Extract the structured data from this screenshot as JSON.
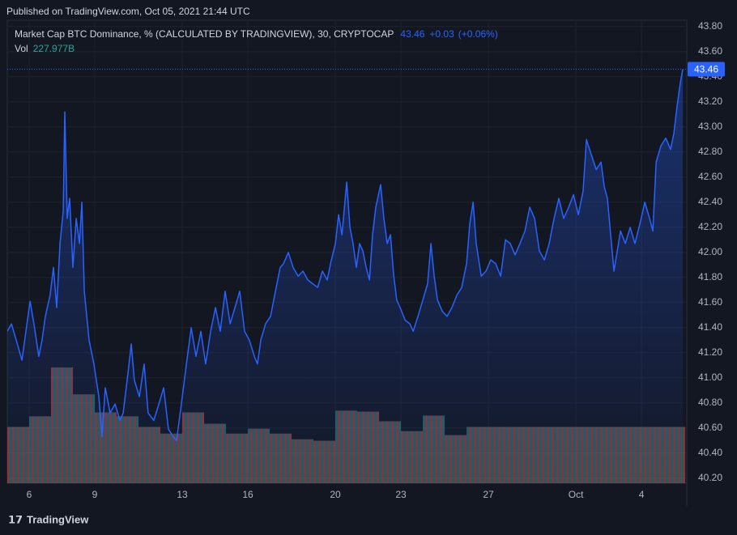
{
  "header": "Published on TradingView.com, Oct 05, 2021 21:44 UTC",
  "footer": "TradingView",
  "chart_data": {
    "type": "line",
    "title": "Market Cap BTC Dominance, % (CALCULATED BY TRADINGVIEW), 30, CRYPTOCAP",
    "change": "+0.03",
    "change_percent": "(+0.06%)",
    "series": [
      {
        "name": "Market Cap BTC Dominance",
        "color": "#2962ff",
        "x": [
          5.0,
          5.19,
          5.41,
          5.67,
          5.85,
          6.04,
          6.22,
          6.44,
          6.59,
          6.74,
          6.96,
          7.11,
          7.26,
          7.41,
          7.56,
          7.63,
          7.74,
          7.85,
          8.0,
          8.15,
          8.3,
          8.41,
          8.52,
          8.74,
          8.96,
          9.19,
          9.33,
          9.48,
          9.7,
          9.93,
          10.15,
          10.3,
          10.52,
          10.67,
          10.81,
          11.04,
          11.26,
          11.44,
          11.7,
          11.93,
          12.15,
          12.37,
          12.59,
          12.74,
          12.96,
          13.19,
          13.41,
          13.63,
          13.85,
          14.07,
          14.3,
          14.52,
          14.74,
          14.96,
          15.19,
          15.41,
          15.63,
          15.85,
          16.07,
          16.3,
          16.44,
          16.59,
          16.81,
          17.04,
          17.26,
          17.48,
          17.63,
          17.85,
          18.07,
          18.3,
          18.52,
          18.74,
          18.96,
          19.19,
          19.41,
          19.63,
          19.78,
          20.0,
          20.15,
          20.3,
          20.52,
          20.67,
          20.81,
          20.96,
          21.11,
          21.26,
          21.41,
          21.56,
          21.7,
          21.85,
          22.07,
          22.22,
          22.37,
          22.52,
          22.67,
          22.81,
          22.96,
          23.19,
          23.41,
          23.56,
          23.78,
          24.0,
          24.22,
          24.37,
          24.52,
          24.67,
          24.89,
          25.11,
          25.33,
          25.56,
          25.78,
          26.0,
          26.15,
          26.3,
          26.44,
          26.67,
          26.89,
          27.11,
          27.33,
          27.56,
          27.78,
          28.0,
          28.22,
          28.44,
          28.67,
          28.89,
          29.11,
          29.33,
          29.56,
          29.78,
          30.0,
          30.22,
          30.44,
          30.67,
          30.89,
          31.11,
          31.33,
          31.48,
          31.7,
          31.93,
          32.15,
          32.3,
          32.44,
          32.59,
          32.74,
          32.89,
          33.04,
          33.26,
          33.48,
          33.7,
          33.93,
          34.15,
          34.37,
          34.52,
          34.67,
          34.89,
          35.11,
          35.33,
          35.48,
          35.63,
          35.78,
          35.89
        ],
        "values": [
          41.37,
          41.43,
          41.3,
          41.14,
          41.37,
          41.61,
          41.43,
          41.17,
          41.3,
          41.49,
          41.66,
          41.88,
          41.56,
          42.07,
          42.33,
          43.12,
          42.27,
          42.43,
          41.88,
          42.27,
          42.07,
          42.4,
          41.69,
          41.3,
          41.11,
          40.85,
          40.53,
          40.92,
          40.72,
          40.79,
          40.66,
          40.72,
          41.04,
          41.27,
          40.98,
          40.85,
          41.11,
          40.72,
          40.66,
          40.79,
          40.92,
          40.59,
          40.53,
          40.5,
          40.79,
          41.11,
          41.4,
          41.17,
          41.37,
          41.11,
          41.37,
          41.56,
          41.37,
          41.69,
          41.43,
          41.56,
          41.69,
          41.37,
          41.3,
          41.17,
          41.11,
          41.3,
          41.43,
          41.49,
          41.69,
          41.88,
          41.91,
          42.0,
          41.88,
          41.81,
          41.85,
          41.78,
          41.75,
          41.72,
          41.85,
          41.78,
          41.91,
          42.07,
          42.3,
          42.14,
          42.56,
          42.2,
          42.07,
          41.88,
          42.07,
          42.01,
          41.88,
          41.78,
          42.14,
          42.36,
          42.54,
          42.27,
          42.07,
          42.14,
          41.81,
          41.62,
          41.56,
          41.46,
          41.43,
          41.37,
          41.49,
          41.62,
          41.75,
          42.07,
          41.81,
          41.62,
          41.53,
          41.49,
          41.56,
          41.66,
          41.72,
          41.91,
          42.23,
          42.4,
          42.07,
          41.81,
          41.85,
          41.94,
          41.91,
          41.81,
          42.1,
          42.07,
          41.98,
          42.07,
          42.17,
          42.36,
          42.27,
          42.01,
          41.94,
          42.07,
          42.27,
          42.43,
          42.27,
          42.36,
          42.46,
          42.3,
          42.49,
          42.9,
          42.78,
          42.66,
          42.72,
          42.52,
          42.43,
          42.14,
          41.85,
          42.01,
          42.17,
          42.07,
          42.2,
          42.07,
          42.23,
          42.4,
          42.27,
          42.17,
          42.72,
          42.85,
          42.91,
          42.82,
          42.95,
          43.17,
          43.36,
          43.46
        ]
      }
    ],
    "volume": {
      "name": "Vol",
      "up_color": "#26a69a",
      "down_color": "#ef5350",
      "x": [
        5,
        6,
        7,
        8,
        9,
        10,
        11,
        12,
        13,
        14,
        15,
        16,
        17,
        18,
        19,
        20,
        21,
        22,
        23,
        24,
        25,
        26,
        27,
        28,
        29,
        30,
        31,
        32,
        33,
        34,
        35
      ],
      "values": [
        228,
        271,
        469,
        360,
        287,
        271,
        228,
        201,
        287,
        241,
        201,
        221,
        201,
        178,
        172,
        294,
        290,
        251,
        211,
        274,
        195,
        228,
        228,
        228,
        228,
        228,
        228,
        228,
        228,
        228,
        227.977
      ],
      "last_value_label": "227.977B"
    },
    "xlim": [
      5,
      36.07
    ],
    "xticks": [
      6,
      9,
      13,
      16,
      20,
      23,
      27,
      {
        "value": 31,
        "label": "Oct"
      },
      {
        "value": 34,
        "label": "4"
      }
    ],
    "ylim": [
      40.16,
      43.85
    ],
    "yticks": [
      {
        "value": 40.2,
        "label": "40.20"
      },
      {
        "value": 40.4,
        "label": "40.40"
      },
      {
        "value": 40.6,
        "label": "40.60"
      },
      {
        "value": 40.8,
        "label": "40.80"
      },
      {
        "value": 41.0,
        "label": "41.00"
      },
      {
        "value": 41.2,
        "label": "41.20"
      },
      {
        "value": 41.4,
        "label": "41.40"
      },
      {
        "value": 41.6,
        "label": "41.60"
      },
      {
        "value": 41.8,
        "label": "41.80"
      },
      {
        "value": 42.0,
        "label": "42.00"
      },
      {
        "value": 42.2,
        "label": "42.20"
      },
      {
        "value": 42.4,
        "label": "42.40"
      },
      {
        "value": 42.6,
        "label": "42.60"
      },
      {
        "value": 42.8,
        "label": "42.80"
      },
      {
        "value": 43.0,
        "label": "43.00"
      },
      {
        "value": 43.2,
        "label": "43.20"
      },
      {
        "value": 43.4,
        "label": "43.40"
      },
      {
        "value": 43.6,
        "label": "43.60"
      },
      {
        "value": 43.8,
        "label": "43.80"
      }
    ],
    "grid": true
  }
}
